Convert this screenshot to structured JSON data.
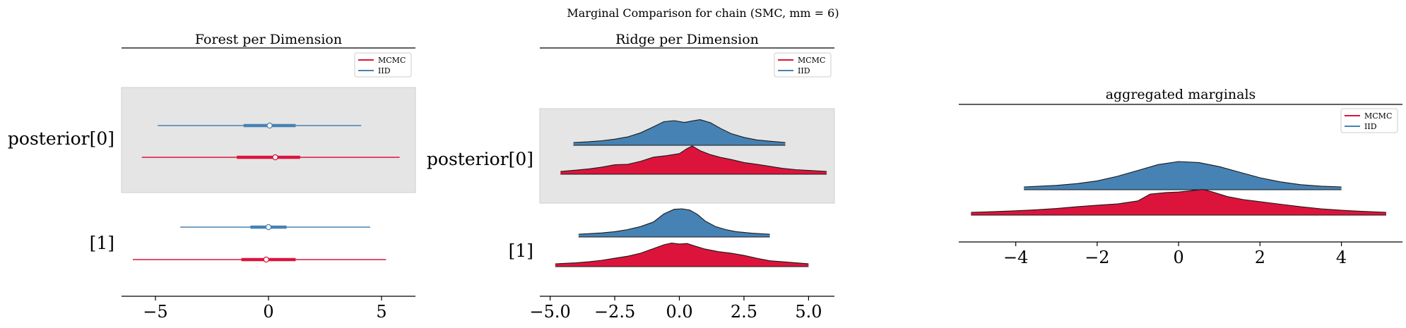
{
  "figure": {
    "suptitle": "Marginal Comparison for chain (SMC, mm = 6)"
  },
  "colors": {
    "mcmc": "#dc143c",
    "iid": "#4682b4",
    "band": "#e5e5e5",
    "outline": "#1a1a1a"
  },
  "legend": [
    "MCMC",
    "IID"
  ],
  "chart_data": [
    {
      "type": "forest",
      "title": "Forest per Dimension",
      "xlim": [
        -6.5,
        6.5
      ],
      "xticks": [
        {
          "v": -5,
          "label": "−5"
        },
        {
          "v": 0,
          "label": "0"
        },
        {
          "v": 5,
          "label": "5"
        }
      ],
      "ylabels": [
        "posterior[0]",
        "[1]"
      ],
      "legend": "top-right",
      "series": [
        {
          "name": "IID",
          "dim": 0,
          "min": -4.9,
          "q25": -1.1,
          "median": 0.05,
          "q75": 1.2,
          "max": 4.1
        },
        {
          "name": "MCMC",
          "dim": 0,
          "min": -5.6,
          "q25": -1.4,
          "median": 0.3,
          "q75": 1.4,
          "max": 5.8
        },
        {
          "name": "IID",
          "dim": 1,
          "min": -3.9,
          "q25": -0.8,
          "median": 0.0,
          "q75": 0.8,
          "max": 4.5
        },
        {
          "name": "MCMC",
          "dim": 1,
          "min": -6.0,
          "q25": -1.2,
          "median": -0.1,
          "q75": 1.2,
          "max": 5.2
        }
      ]
    },
    {
      "type": "ridge",
      "title": "Ridge per Dimension",
      "xlim": [
        -5.4,
        6.0
      ],
      "xticks": [
        {
          "v": -5,
          "label": "−5.0"
        },
        {
          "v": -2.5,
          "label": "−2.5"
        },
        {
          "v": 0,
          "label": "0.0"
        },
        {
          "v": 2.5,
          "label": "2.5"
        },
        {
          "v": 5,
          "label": "5.0"
        }
      ],
      "ylabels": [
        "posterior[0]",
        "[1]"
      ],
      "legend": "top-right",
      "series": [
        {
          "name": "IID",
          "dim": 0,
          "x": [
            -4.1,
            -3.5,
            -3.0,
            -2.5,
            -2.0,
            -1.5,
            -1.0,
            -0.6,
            -0.2,
            0.2,
            0.5,
            0.8,
            1.2,
            1.6,
            2.0,
            2.5,
            3.0,
            3.5,
            4.1
          ],
          "density": [
            0.0,
            0.03,
            0.07,
            0.13,
            0.22,
            0.38,
            0.62,
            0.82,
            0.86,
            0.79,
            0.85,
            0.9,
            0.78,
            0.55,
            0.35,
            0.2,
            0.1,
            0.05,
            0.0
          ]
        },
        {
          "name": "MCMC",
          "dim": 0,
          "x": [
            -4.6,
            -4.0,
            -3.5,
            -3.0,
            -2.5,
            -2.0,
            -1.5,
            -1.0,
            -0.5,
            0.0,
            0.3,
            0.5,
            0.8,
            1.2,
            1.6,
            2.0,
            2.5,
            3.0,
            3.5,
            4.0,
            4.5,
            5.0,
            5.7
          ],
          "density": [
            0.0,
            0.05,
            0.1,
            0.17,
            0.26,
            0.28,
            0.4,
            0.56,
            0.62,
            0.7,
            0.9,
            1.0,
            0.82,
            0.66,
            0.55,
            0.47,
            0.35,
            0.28,
            0.2,
            0.12,
            0.07,
            0.04,
            0.0
          ]
        },
        {
          "name": "IID",
          "dim": 1,
          "x": [
            -3.9,
            -3.0,
            -2.5,
            -2.0,
            -1.5,
            -1.0,
            -0.6,
            -0.2,
            0.1,
            0.4,
            0.7,
            1.0,
            1.4,
            1.8,
            2.2,
            2.8,
            3.5
          ],
          "density": [
            0.0,
            0.05,
            0.1,
            0.18,
            0.3,
            0.48,
            0.8,
            0.98,
            1.0,
            0.95,
            0.78,
            0.52,
            0.3,
            0.18,
            0.1,
            0.04,
            0.0
          ]
        },
        {
          "name": "MCMC",
          "dim": 1,
          "x": [
            -4.8,
            -4.0,
            -3.5,
            -3.0,
            -2.5,
            -2.0,
            -1.5,
            -1.0,
            -0.6,
            -0.3,
            0.0,
            0.3,
            0.6,
            1.0,
            1.5,
            2.0,
            2.5,
            3.0,
            3.5,
            4.0,
            4.5,
            5.0
          ],
          "density": [
            0.0,
            0.04,
            0.08,
            0.14,
            0.22,
            0.3,
            0.42,
            0.6,
            0.75,
            0.82,
            0.78,
            0.8,
            0.7,
            0.58,
            0.48,
            0.42,
            0.33,
            0.22,
            0.12,
            0.08,
            0.04,
            0.0
          ]
        }
      ]
    },
    {
      "type": "ridge",
      "title": "aggregated marginals",
      "xlim": [
        -5.4,
        5.5
      ],
      "xticks": [
        {
          "v": -4,
          "label": "−4"
        },
        {
          "v": -2,
          "label": "−2"
        },
        {
          "v": 0,
          "label": "0"
        },
        {
          "v": 2,
          "label": "2"
        },
        {
          "v": 4,
          "label": "4"
        }
      ],
      "ylabels": [],
      "legend": "top-right",
      "series": [
        {
          "name": "IID",
          "x": [
            -3.8,
            -3.0,
            -2.5,
            -2.0,
            -1.5,
            -1.0,
            -0.5,
            0.0,
            0.5,
            1.0,
            1.5,
            2.0,
            2.5,
            3.0,
            3.5,
            4.0
          ],
          "density": [
            0.0,
            0.06,
            0.13,
            0.24,
            0.42,
            0.65,
            0.88,
            1.0,
            0.96,
            0.8,
            0.58,
            0.36,
            0.2,
            0.09,
            0.03,
            0.0
          ]
        },
        {
          "name": "MCMC",
          "x": [
            -5.1,
            -4.5,
            -4.0,
            -3.5,
            -3.0,
            -2.5,
            -2.0,
            -1.5,
            -1.0,
            -0.7,
            -0.3,
            0.0,
            0.3,
            0.6,
            0.8,
            1.2,
            1.6,
            2.0,
            2.5,
            3.0,
            3.5,
            4.0,
            4.5,
            5.1
          ],
          "density": [
            0.0,
            0.03,
            0.06,
            0.1,
            0.15,
            0.22,
            0.28,
            0.33,
            0.45,
            0.72,
            0.78,
            0.8,
            0.85,
            0.9,
            0.82,
            0.62,
            0.5,
            0.42,
            0.32,
            0.22,
            0.14,
            0.08,
            0.04,
            0.0
          ]
        }
      ]
    }
  ]
}
